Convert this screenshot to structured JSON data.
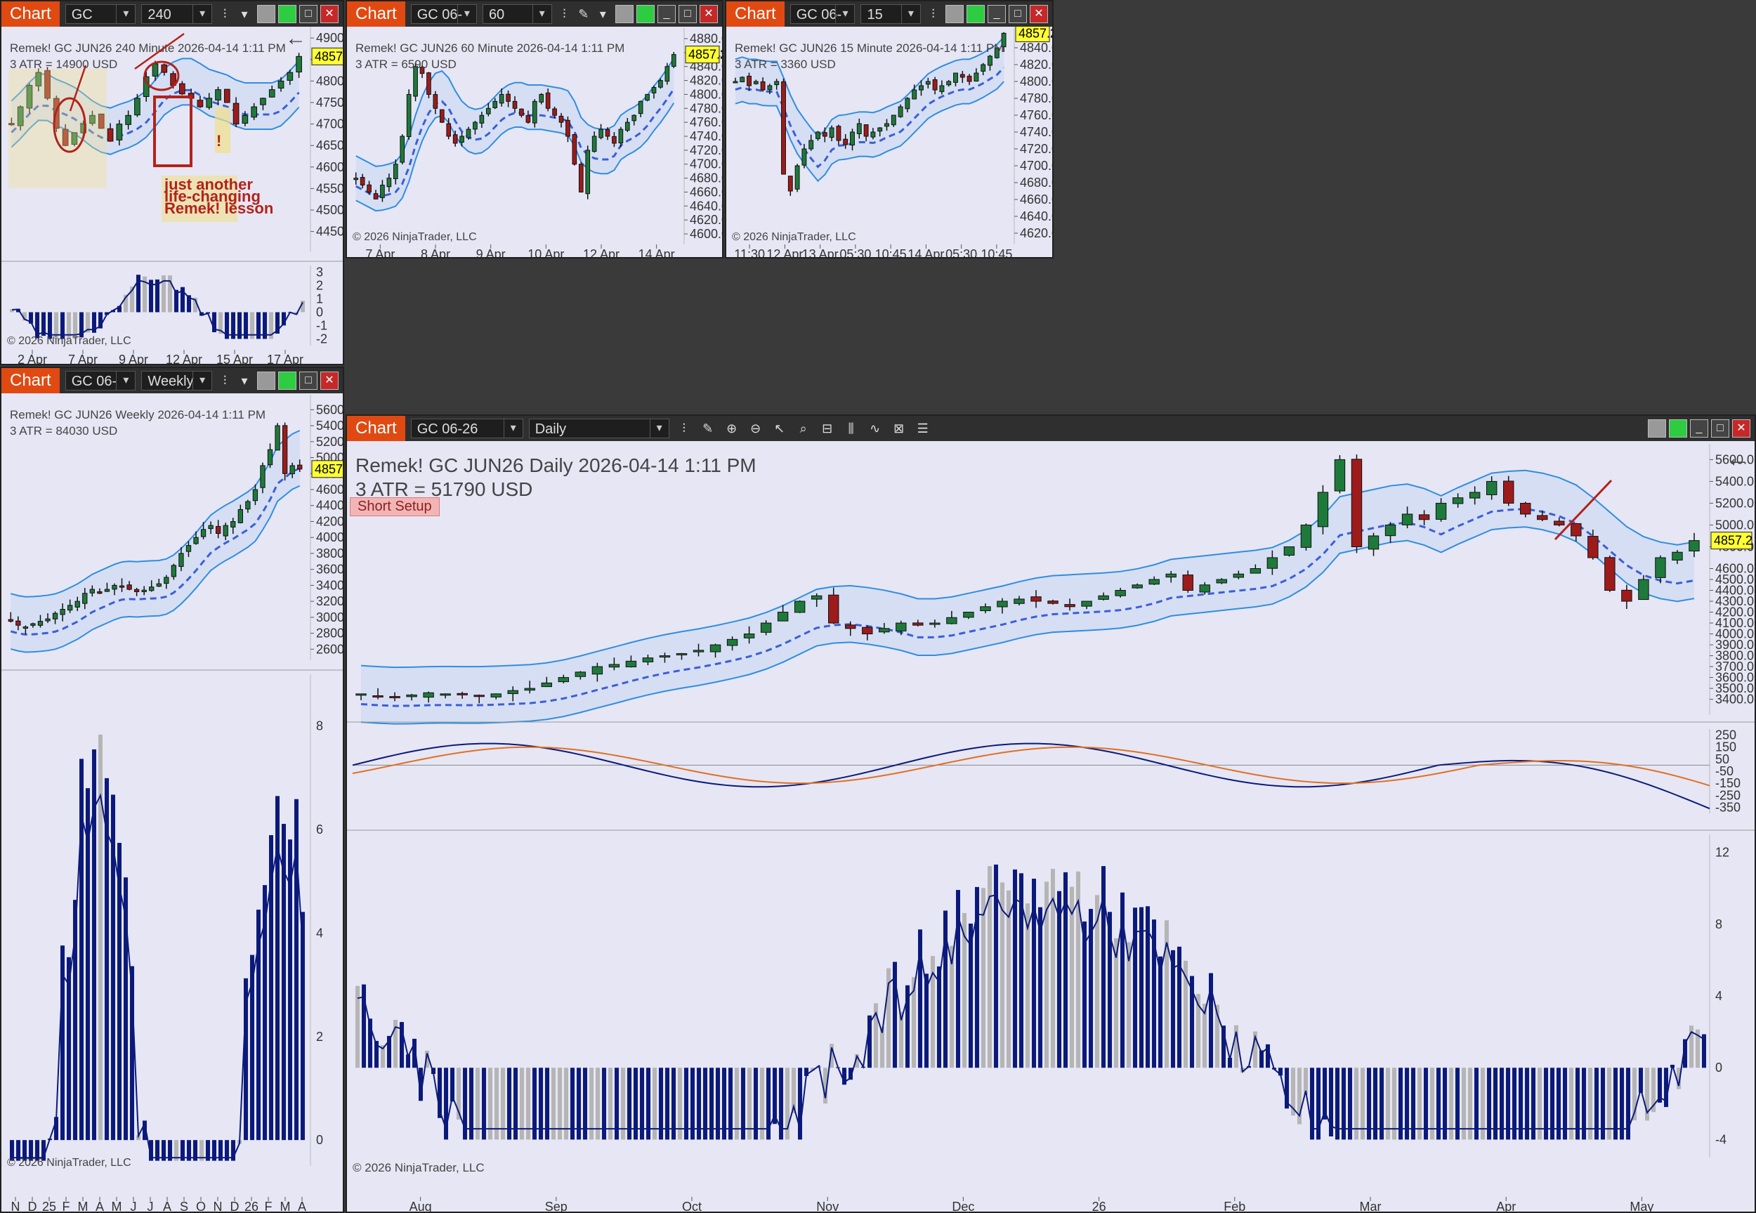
{
  "common": {
    "chart_tab": "Chart",
    "instrument": "GC 06-26",
    "copyright": "© 2026 NinjaTrader, LLC",
    "price_tag": "4857.2"
  },
  "w1": {
    "instrument": "GC JUN26",
    "interval": "240 Minute",
    "title": "Remek!  GC JUN26  240 Minute  2026-04-14 1:11 PM",
    "atr": "3 ATR = 14900 USD",
    "note": [
      "just another",
      "life-changing",
      "Remek! lesson"
    ],
    "exclaim": "!",
    "back_arrow": "←"
  },
  "w2": {
    "instrument": "GC 06-26",
    "interval": "60 Minute",
    "title": "Remek!  GC JUN26  60 Minute  2026-04-14 1:11 PM",
    "atr": "3 ATR = 6590 USD"
  },
  "w3": {
    "instrument": "GC 06-26",
    "interval": "15 Minute",
    "title": "Remek!  GC JUN26  15 Minute  2026-04-14 1:11 PM",
    "atr": "3 ATR = 3360 USD"
  },
  "w4": {
    "instrument": "GC 06-26",
    "interval": "Weekly",
    "title": "Remek!  GC JUN26  Weekly  2026-04-14 1:11 PM",
    "atr": "3 ATR = 84030 USD"
  },
  "w5": {
    "instrument": "GC 06-26",
    "interval": "Daily",
    "title": "Remek!  GC JUN26  Daily  2026-04-14 1:11 PM",
    "atr": "3 ATR = 51790 USD",
    "setup_badge": "Short Setup",
    "back_arrow": "←"
  },
  "colors": {
    "chart_tab": "#e04a12",
    "background": "#e6e6f5",
    "up_candle": "#1e7a3a",
    "down_candle": "#9e1b1b",
    "band": "#2f8ee0",
    "midline": "#3b5fd6",
    "stop_line": "#f2e233",
    "histogram": "#0b1a7a",
    "histogram_neutral": "#b5b5b5",
    "macd": "#0b1a7a",
    "signal": "#e07020",
    "annotation": "#b3221a",
    "price_tag_bg": "#ffff33"
  },
  "chart_data": [
    {
      "type": "candlestick",
      "id": "w1",
      "interval": "240 Minute",
      "y_ticks": [
        4900.0,
        4850.0,
        4800.0,
        4750.0,
        4700.0,
        4650.0,
        4600.0,
        4550.0,
        4500.0,
        4450.0
      ],
      "ylim": [
        4420,
        4910
      ],
      "x_ticks": [
        "2 Apr",
        "7 Apr",
        "9 Apr",
        "12 Apr",
        "15 Apr",
        "17 Apr"
      ],
      "last_price": 4857.2,
      "closes": [
        4700,
        4740,
        4790,
        4820,
        4760,
        4690,
        4650,
        4680,
        4700,
        4720,
        4690,
        4660,
        4700,
        4720,
        4760,
        4810,
        4840,
        4820,
        4790,
        4770,
        4760,
        4740,
        4760,
        4780,
        4750,
        4700,
        4720,
        4740,
        4760,
        4780,
        4800,
        4820,
        4857.2
      ],
      "oscillator": {
        "y_ticks": [
          3,
          2,
          1,
          0,
          -1,
          -2
        ],
        "ylim": [
          -2.5,
          3.5
        ]
      }
    },
    {
      "type": "candlestick",
      "id": "w2",
      "interval": "60 Minute",
      "y_ticks": [
        4880.0,
        4860.0,
        4840.0,
        4820.0,
        4800.0,
        4780.0,
        4760.0,
        4740.0,
        4720.0,
        4700.0,
        4680.0,
        4660.0,
        4640.0,
        4620.0,
        4600.0
      ],
      "ylim": [
        4595,
        4885
      ],
      "x_ticks": [
        "7 Apr",
        "8 Apr",
        "9 Apr",
        "10 Apr",
        "12 Apr",
        "14 Apr"
      ],
      "last_price": 4857.2,
      "closes": [
        4680,
        4670,
        4660,
        4650,
        4670,
        4680,
        4700,
        4740,
        4800,
        4840,
        4830,
        4800,
        4780,
        4760,
        4740,
        4730,
        4740,
        4750,
        4760,
        4770,
        4780,
        4790,
        4800,
        4790,
        4780,
        4770,
        4760,
        4790,
        4800,
        4780,
        4770,
        4760,
        4740,
        4700,
        4660,
        4720,
        4740,
        4750,
        4740,
        4730,
        4750,
        4760,
        4770,
        4790,
        4800,
        4810,
        4820,
        4840,
        4857.2
      ]
    },
    {
      "type": "candlestick",
      "id": "w3",
      "interval": "15 Minute",
      "y_ticks": [
        4840.0,
        4820.0,
        4800.0,
        4780.0,
        4760.0,
        4740.0,
        4720.0,
        4700.0,
        4680.0,
        4660.0,
        4640.0,
        4620.0
      ],
      "ylim": [
        4615,
        4855
      ],
      "x_ticks": [
        "11:30",
        "12 Apr",
        "13 Apr",
        "05:30",
        "10:45",
        "14 Apr",
        "05:30",
        "10:45"
      ],
      "last_price": 4857.2,
      "closes": [
        4800,
        4805,
        4795,
        4800,
        4790,
        4795,
        4800,
        4690,
        4670,
        4700,
        4720,
        4730,
        4740,
        4735,
        4745,
        4730,
        4725,
        4740,
        4750,
        4735,
        4740,
        4745,
        4750,
        4760,
        4770,
        4780,
        4790,
        4795,
        4800,
        4790,
        4795,
        4800,
        4810,
        4805,
        4800,
        4810,
        4820,
        4830,
        4840,
        4857.2
      ]
    },
    {
      "type": "candlestick",
      "id": "w4",
      "interval": "Weekly",
      "y_ticks": [
        5600.0,
        5400.0,
        5200.0,
        5000.0,
        4800.0,
        4600.0,
        4400.0,
        4200.0,
        4000.0,
        3800.0,
        3600.0,
        3400.0,
        3200.0,
        3000.0,
        2800.0,
        2600.0
      ],
      "ylim": [
        2550,
        5700
      ],
      "x_ticks": [
        "N",
        "D",
        "25",
        "F",
        "M",
        "A",
        "M",
        "J",
        "J",
        "A",
        "S",
        "O",
        "N",
        "D",
        "26",
        "F",
        "M",
        "A"
      ],
      "last_price": 4857.2,
      "closes": [
        2950,
        2900,
        2880,
        2920,
        2950,
        2980,
        3050,
        3100,
        3150,
        3200,
        3300,
        3350,
        3300,
        3350,
        3400,
        3380,
        3350,
        3320,
        3340,
        3380,
        3420,
        3500,
        3650,
        3800,
        3900,
        4000,
        4100,
        4150,
        4050,
        4150,
        4200,
        4350,
        4450,
        4600,
        4900,
        5100,
        5400,
        4800,
        4900,
        4857.2
      ],
      "oscillator": {
        "y_ticks": [
          8,
          6,
          4,
          2,
          0
        ],
        "ylim": [
          -0.5,
          9
        ]
      }
    },
    {
      "type": "candlestick",
      "id": "w5",
      "interval": "Daily",
      "y_ticks": [
        5600.0,
        5400.0,
        5200.0,
        5000.0,
        4800.0,
        4600.0,
        4500.0,
        4400.0,
        4300.0,
        4200.0,
        4100.0,
        4000.0,
        3900.0,
        3800.0,
        3700.0,
        3600.0,
        3500.0,
        3400.0
      ],
      "ylim": [
        3320,
        5680
      ],
      "x_ticks": [
        "Aug",
        "Sep",
        "Oct",
        "Nov",
        "Dec",
        "26",
        "Feb",
        "Mar",
        "Apr",
        "May"
      ],
      "last_price": 4857.2,
      "closes": [
        3450,
        3430,
        3420,
        3440,
        3460,
        3450,
        3440,
        3430,
        3450,
        3480,
        3500,
        3550,
        3600,
        3650,
        3700,
        3720,
        3750,
        3780,
        3800,
        3820,
        3850,
        3900,
        3950,
        4000,
        4100,
        4200,
        4300,
        4350,
        4100,
        4050,
        4000,
        4050,
        4100,
        4080,
        4100,
        4150,
        4200,
        4250,
        4300,
        4320,
        4300,
        4280,
        4250,
        4300,
        4350,
        4400,
        4450,
        4500,
        4550,
        4400,
        4450,
        4500,
        4550,
        4600,
        4700,
        4800,
        5000,
        5300,
        5600,
        4800,
        4900,
        5000,
        5100,
        5050,
        5200,
        5250,
        5300,
        5400,
        5200,
        5100,
        5050,
        5000,
        4900,
        4700,
        4400,
        4300,
        4500,
        4700,
        4750,
        4857.2
      ],
      "macd": {
        "y_ticks": [
          250,
          150,
          50,
          -50,
          -150,
          -250,
          -350
        ],
        "ylim": [
          -400,
          300
        ]
      },
      "oscillator": {
        "y_ticks": [
          12,
          8,
          4,
          0,
          -4
        ],
        "ylim": [
          -5,
          13
        ]
      }
    }
  ]
}
